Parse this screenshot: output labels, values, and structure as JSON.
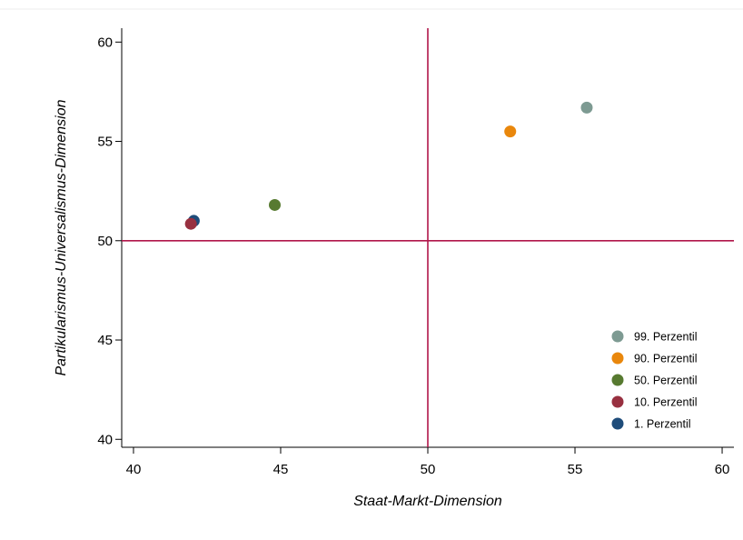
{
  "chart_data": {
    "type": "scatter",
    "title": "",
    "xlabel": "Staat-Markt-Dimension",
    "ylabel": "Partikularismus-Universalismus-Dimension",
    "xlim": [
      39.6,
      60.4
    ],
    "ylim": [
      39.6,
      60.7
    ],
    "xticks": [
      40,
      45,
      50,
      55,
      60
    ],
    "yticks": [
      40,
      45,
      50,
      55,
      60
    ],
    "xtick_labels": [
      "40",
      "45",
      "50",
      "55",
      "60"
    ],
    "ytick_labels": [
      "40",
      "45",
      "50",
      "55",
      "60"
    ],
    "grid": false,
    "reference_lines": {
      "x": 50,
      "y": 50,
      "color": "#b0164a"
    },
    "legend_position": "bottom-right",
    "series": [
      {
        "name": "99. Perzentil",
        "color": "#7d9a92",
        "x": [
          55.4
        ],
        "y": [
          56.7
        ]
      },
      {
        "name": "90. Perzentil",
        "color": "#e9870c",
        "x": [
          52.8
        ],
        "y": [
          55.5
        ]
      },
      {
        "name": "50. Perzentil",
        "color": "#577a30",
        "x": [
          44.8
        ],
        "y": [
          51.8
        ]
      },
      {
        "name": "10. Perzentil",
        "color": "#983040",
        "x": [
          41.95
        ],
        "y": [
          50.85
        ]
      },
      {
        "name": "1. Perzentil",
        "color": "#1e4c7a",
        "x": [
          42.05
        ],
        "y": [
          51.0
        ]
      }
    ],
    "draw_order": [
      4,
      3,
      2,
      1,
      0
    ]
  }
}
